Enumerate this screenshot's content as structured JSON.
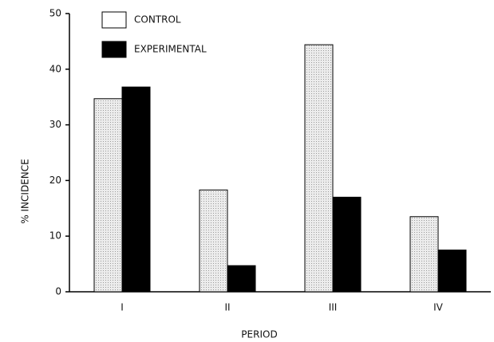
{
  "chart_data": {
    "type": "bar",
    "categories": [
      "I",
      "II",
      "III",
      "IV"
    ],
    "series": [
      {
        "name": "CONTROL",
        "color": "#dcdcdc",
        "values": [
          34.7,
          18.3,
          44.4,
          13.5
        ]
      },
      {
        "name": "EXPERIMENTAL",
        "color": "#000000",
        "values": [
          36.8,
          4.7,
          17.0,
          7.5
        ]
      }
    ],
    "ylabel": "% INCIDENCE",
    "xlabel": "PERIOD",
    "ylim": [
      0,
      50
    ],
    "yticks": [
      0,
      10,
      20,
      30,
      40,
      50
    ],
    "legend": "upper left",
    "grid": false
  }
}
